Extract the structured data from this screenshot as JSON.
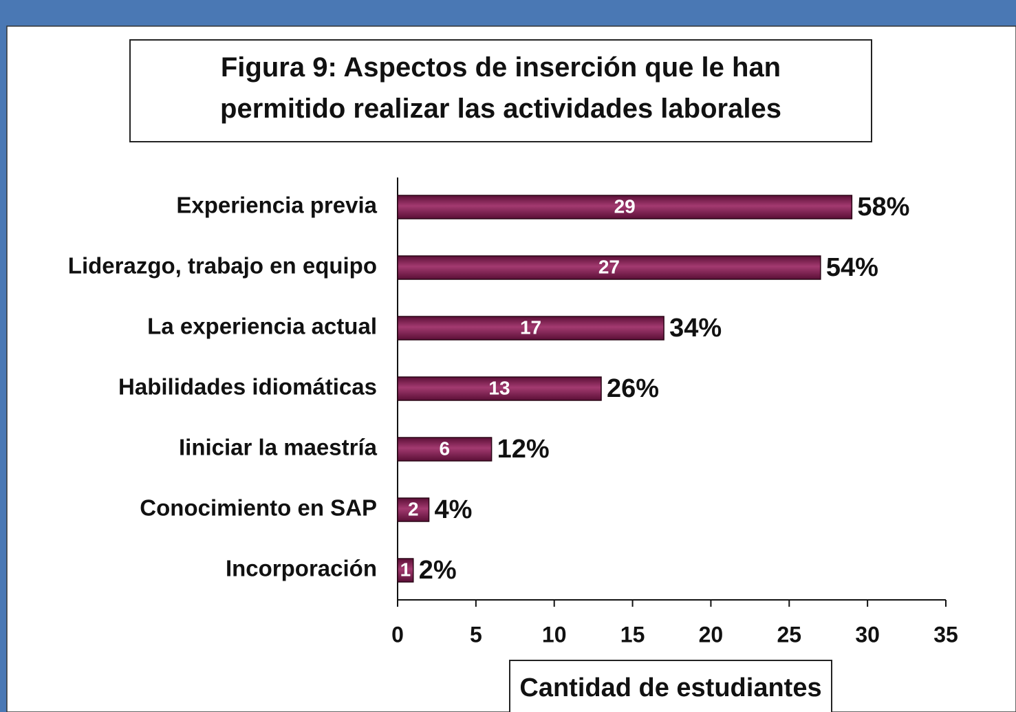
{
  "chart_data": {
    "type": "bar",
    "orientation": "horizontal",
    "title": "Figura 9: Aspectos de inserción que le han permitido realizar las actividades laborales",
    "x_label": "Cantidad de estudiantes",
    "categories": [
      "Experiencia previa",
      "Liderazgo, trabajo en equipo",
      "La experiencia actual",
      "Habilidades idiomáticas",
      "Iiniciar la maestría",
      "Conocimiento en SAP",
      "Incorporación"
    ],
    "values": [
      29,
      27,
      17,
      13,
      6,
      2,
      1
    ],
    "percentages": [
      58,
      54,
      34,
      26,
      12,
      4,
      2
    ],
    "percentage_labels": [
      "58%",
      "54%",
      "34%",
      "26%",
      "12%",
      "4%",
      "2%"
    ],
    "color": "#7b1d4d",
    "xlim": [
      0,
      35
    ],
    "xticks": [
      0,
      5,
      10,
      15,
      20,
      25,
      30,
      35
    ]
  }
}
